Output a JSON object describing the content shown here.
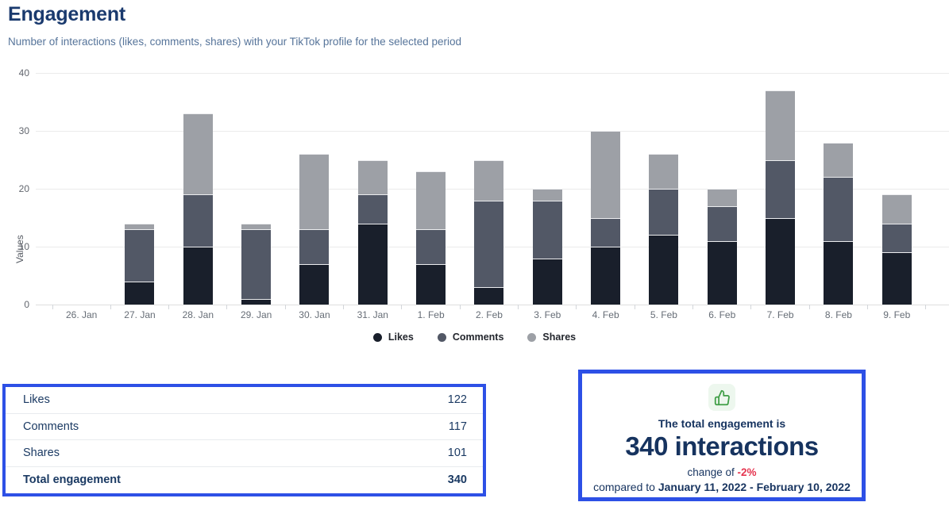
{
  "header": {
    "title": "Engagement",
    "subtitle": "Number of interactions (likes, comments, shares) with your TikTok profile for the selected period"
  },
  "chart_data": {
    "type": "bar",
    "stacked": true,
    "ylabel": "Values",
    "xlabel": "",
    "ylim": [
      0,
      40
    ],
    "yticks": [
      0,
      10,
      20,
      30,
      40
    ],
    "grid": true,
    "legend_position": "bottom",
    "categories": [
      "26. Jan",
      "27. Jan",
      "28. Jan",
      "29. Jan",
      "30. Jan",
      "31. Jan",
      "1. Feb",
      "2. Feb",
      "3. Feb",
      "4. Feb",
      "5. Feb",
      "6. Feb",
      "7. Feb",
      "8. Feb",
      "9. Feb"
    ],
    "series": [
      {
        "name": "Likes",
        "color": "#191f2b",
        "values": [
          0,
          4,
          10,
          1,
          7,
          14,
          7,
          3,
          8,
          10,
          12,
          11,
          15,
          11,
          9
        ]
      },
      {
        "name": "Comments",
        "color": "#525866",
        "values": [
          0,
          9,
          9,
          12,
          6,
          5,
          6,
          15,
          10,
          5,
          8,
          6,
          10,
          11,
          5
        ]
      },
      {
        "name": "Shares",
        "color": "#9da0a6",
        "values": [
          0,
          1,
          14,
          1,
          13,
          6,
          10,
          7,
          2,
          15,
          6,
          3,
          12,
          6,
          5
        ]
      }
    ],
    "bar_totals": [
      0,
      14,
      33,
      14,
      26,
      25,
      23,
      25,
      20,
      30,
      26,
      20,
      37,
      28,
      19
    ]
  },
  "summary_table": {
    "rows": [
      {
        "label": "Likes",
        "value": "122"
      },
      {
        "label": "Comments",
        "value": "117"
      },
      {
        "label": "Shares",
        "value": "101"
      }
    ],
    "total_row": {
      "label": "Total engagement",
      "value": "340"
    }
  },
  "summary_card": {
    "icon": "thumbs-up-icon",
    "line1": "The total engagement is",
    "headline": "340 interactions",
    "change_prefix": "change of ",
    "change_value": "-2%",
    "compare_prefix": "compared to ",
    "compare_range": "January 11, 2022 - February 10, 2022"
  },
  "colors": {
    "accent_border": "#2d50e6",
    "navy_text": "#16335f",
    "negative_red": "#e5344f",
    "icon_green": "#3f9e46",
    "icon_green_bg": "#edf7ee",
    "likes": "#191f2b",
    "comments": "#525866",
    "shares": "#9da0a6"
  }
}
